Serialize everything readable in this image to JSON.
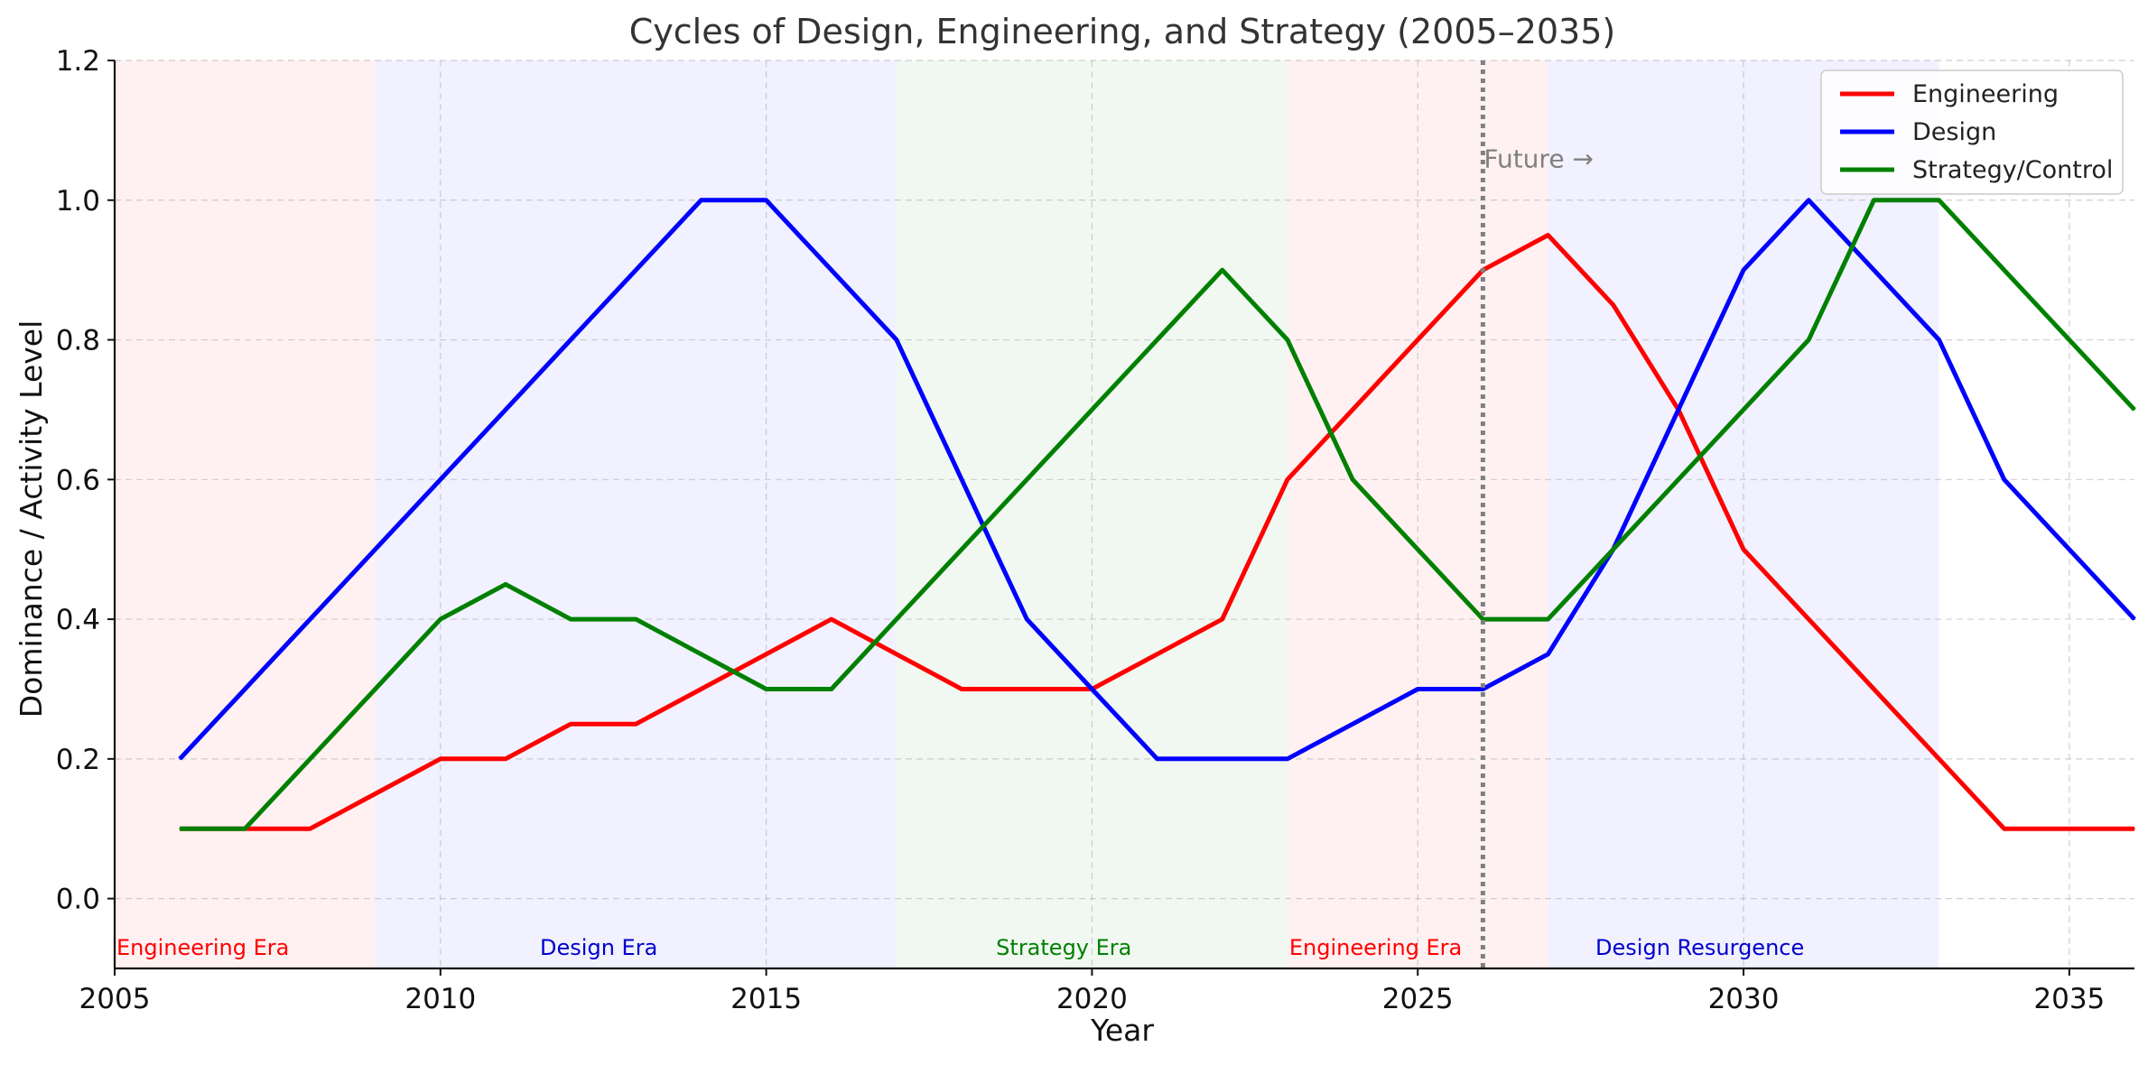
{
  "chart_data": {
    "type": "line",
    "title": "Cycles of Design, Engineering, and Strategy (2005–2035)",
    "xlabel": "Year",
    "ylabel": "Dominance / Activity Level",
    "xlim": [
      2005,
      2036
    ],
    "ylim": [
      -0.1,
      1.2
    ],
    "xticks": [
      2005,
      2010,
      2015,
      2020,
      2025,
      2030,
      2035
    ],
    "yticks": [
      "0.0",
      "0.2",
      "0.4",
      "0.6",
      "0.8",
      "1.0",
      "1.2"
    ],
    "grid": true,
    "legend_position": "top-right",
    "x": [
      2006,
      2007,
      2008,
      2009,
      2010,
      2011,
      2012,
      2013,
      2014,
      2015,
      2016,
      2017,
      2018,
      2019,
      2020,
      2021,
      2022,
      2023,
      2024,
      2025,
      2026,
      2027,
      2028,
      2029,
      2030,
      2031,
      2032,
      2033,
      2034,
      2035,
      2036
    ],
    "series": [
      {
        "name": "Engineering",
        "color": "#ff0000",
        "values": [
          0.1,
          0.1,
          0.1,
          0.15,
          0.2,
          0.2,
          0.25,
          0.25,
          0.3,
          0.35,
          0.4,
          0.35,
          0.3,
          0.3,
          0.3,
          0.35,
          0.4,
          0.6,
          0.7,
          0.8,
          0.9,
          0.95,
          0.85,
          0.7,
          0.5,
          0.4,
          0.3,
          0.2,
          0.1,
          0.1,
          0.1
        ]
      },
      {
        "name": "Design",
        "color": "#0000ff",
        "values": [
          0.2,
          0.3,
          0.4,
          0.5,
          0.6,
          0.7,
          0.8,
          0.9,
          1.0,
          1.0,
          0.9,
          0.8,
          0.6,
          0.4,
          0.3,
          0.2,
          0.2,
          0.2,
          0.25,
          0.3,
          0.3,
          0.35,
          0.5,
          0.7,
          0.9,
          1.0,
          0.9,
          0.8,
          0.6,
          0.5,
          0.4
        ]
      },
      {
        "name": "Strategy/Control",
        "color": "#008000",
        "values": [
          0.1,
          0.1,
          0.2,
          0.3,
          0.4,
          0.45,
          0.4,
          0.4,
          0.35,
          0.3,
          0.3,
          0.4,
          0.5,
          0.6,
          0.7,
          0.8,
          0.9,
          0.8,
          0.6,
          0.5,
          0.4,
          0.4,
          0.5,
          0.6,
          0.7,
          0.8,
          1.0,
          1.0,
          0.9,
          0.8,
          0.7
        ]
      }
    ],
    "eras": [
      {
        "label": "Engineering Era",
        "start": 2005,
        "end": 2009,
        "fill": "#ffd6d6",
        "text_color": "#ff0000",
        "label_x": 2005
      },
      {
        "label": "Design Era",
        "start": 2009,
        "end": 2017,
        "fill": "#d6d6ff",
        "text_color": "#0000cc",
        "label_x": 2011.5
      },
      {
        "label": "Strategy Era",
        "start": 2017,
        "end": 2023,
        "fill": "#d6ecd6",
        "text_color": "#008000",
        "label_x": 2018.5
      },
      {
        "label": "Engineering Era",
        "start": 2023,
        "end": 2027,
        "fill": "#ffd6d6",
        "text_color": "#ff0000",
        "label_x": 2023
      },
      {
        "label": "Design Resurgence",
        "start": 2027,
        "end": 2033,
        "fill": "#d6d6ff",
        "text_color": "#0000cc",
        "label_x": 2027.7
      }
    ],
    "divider": {
      "x": 2026,
      "label": "Future →",
      "label_y": 1.06
    }
  }
}
